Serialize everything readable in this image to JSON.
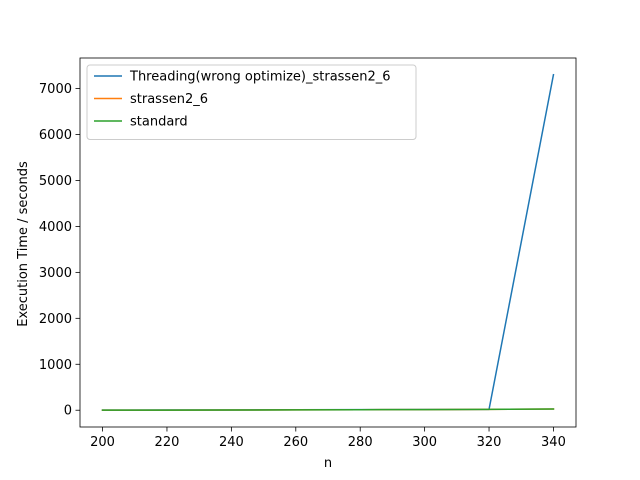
{
  "chart_data": {
    "type": "line",
    "title": "",
    "xlabel": "n",
    "ylabel": "Execution Time / seconds",
    "xlim": [
      193,
      347
    ],
    "ylim": [
      -365,
      7665
    ],
    "xticks": [
      200,
      220,
      240,
      260,
      280,
      300,
      320,
      340
    ],
    "yticks": [
      0,
      1000,
      2000,
      3000,
      4000,
      5000,
      6000,
      7000
    ],
    "grid": false,
    "legend_position": "top-left",
    "x": [
      200,
      220,
      240,
      260,
      280,
      300,
      320,
      340
    ],
    "series": [
      {
        "name": "Threading(wrong optimize)_strassen2_6",
        "color": "#1f77b4",
        "values": [
          3,
          4,
          6,
          9,
          12,
          15,
          18,
          7300
        ]
      },
      {
        "name": "strassen2_6",
        "color": "#ff7f0e",
        "values": [
          2,
          3,
          5,
          8,
          11,
          14,
          18,
          26
        ]
      },
      {
        "name": "standard",
        "color": "#2ca02c",
        "values": [
          2,
          3,
          5,
          8,
          11,
          14,
          18,
          27
        ]
      }
    ]
  }
}
